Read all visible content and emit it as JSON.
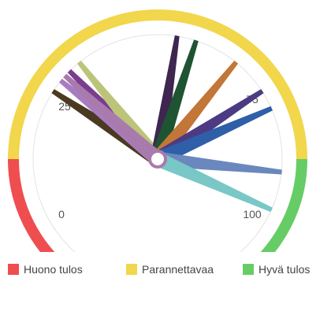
{
  "chart_data": {
    "type": "gauge",
    "scale": {
      "min": 0,
      "max": 100,
      "ticks": [
        0,
        25,
        75,
        100
      ]
    },
    "bands": [
      {
        "name": "Huono tulos",
        "from": 0,
        "to": 20,
        "color": "#ef4e50"
      },
      {
        "name": "Parannettavaa",
        "from": 20,
        "to": 80,
        "color": "#f2d64b"
      },
      {
        "name": "Hyvä tulos",
        "from": 80,
        "to": 100,
        "color": "#66cc66"
      }
    ],
    "needles": [
      {
        "value": 31,
        "color": "#4b3a22"
      },
      {
        "value": 33,
        "color": "#a87cc0"
      },
      {
        "value": 35,
        "color": "#7a3d8e"
      },
      {
        "value": 37,
        "color": "#bcc47a"
      },
      {
        "value": 53,
        "color": "#3e2650"
      },
      {
        "value": 56,
        "color": "#1f5432"
      },
      {
        "value": 63,
        "color": "#c27637"
      },
      {
        "value": 69,
        "color": "#4c3a82"
      },
      {
        "value": 72,
        "color": "#2e5fa8"
      },
      {
        "value": 82,
        "color": "#6a88bd"
      },
      {
        "value": 88,
        "color": "#79c7c6"
      },
      {
        "value": 34,
        "color": "#a97aad"
      }
    ],
    "pivot_color": "#a97aad"
  },
  "legend": [
    {
      "label": "Huono tulos",
      "color": "#ef4e50"
    },
    {
      "label": "Parannettavaa",
      "color": "#f2d64b"
    },
    {
      "label": "Hyvä tulos",
      "color": "#66cc66"
    }
  ]
}
